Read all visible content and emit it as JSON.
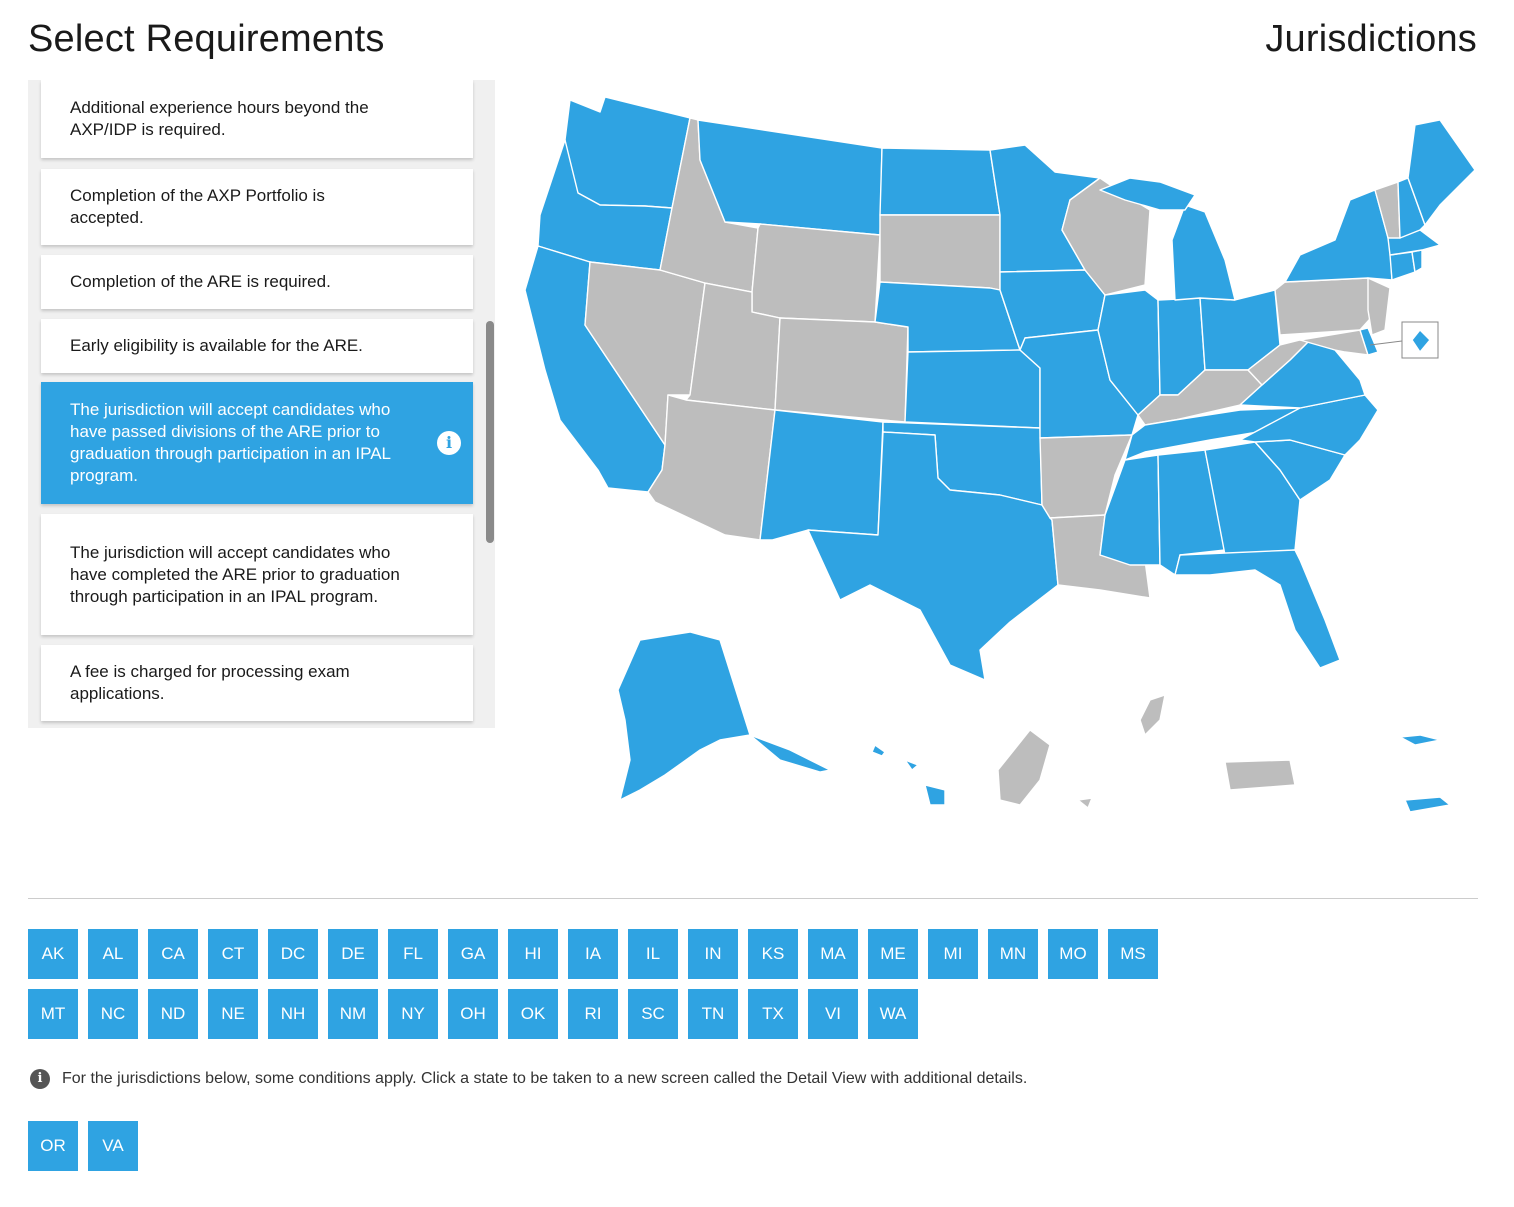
{
  "header": {
    "left_title": "Select Requirements",
    "right_title": "Jurisdictions"
  },
  "requirements": [
    {
      "text": "Additional experience hours beyond the AXP/IDP is required.",
      "selected": false
    },
    {
      "text": "Completion of the AXP Portfolio is accepted.",
      "selected": false
    },
    {
      "text": "Completion of the ARE is required.",
      "selected": false
    },
    {
      "text": "Early eligibility is available for the ARE.",
      "selected": false
    },
    {
      "text": "The jurisdiction will accept candidates who have passed divisions of the ARE prior to graduation through participation in an IPAL program.",
      "selected": true,
      "info_icon": "info-icon"
    },
    {
      "text": "The jurisdiction will accept candidates who have completed the ARE prior to graduation through participation in an IPAL program.",
      "selected": false
    },
    {
      "text": "A fee is charged for processing exam applications.",
      "selected": false
    }
  ],
  "colors": {
    "accent": "#2fa3e2",
    "inactive": "#bdbdbd",
    "panel_bg": "#f0f0f0"
  },
  "map": {
    "highlighted_jurisdictions": [
      "AK",
      "AL",
      "CA",
      "CT",
      "DC",
      "DE",
      "FL",
      "GA",
      "HI",
      "IA",
      "IL",
      "IN",
      "KS",
      "MA",
      "ME",
      "MI",
      "MN",
      "MO",
      "MS",
      "MT",
      "NC",
      "ND",
      "NE",
      "NH",
      "NM",
      "NY",
      "OH",
      "OK",
      "RI",
      "SC",
      "TN",
      "TX",
      "VI",
      "WA",
      "OR",
      "VA"
    ],
    "dc_marker_icon": "dc-diamond-icon"
  },
  "jurisdictions": {
    "row1": [
      "AK",
      "AL",
      "CA",
      "CT",
      "DC",
      "DE",
      "FL",
      "GA",
      "HI",
      "IA",
      "IL",
      "IN",
      "KS",
      "MA",
      "ME",
      "MI",
      "MN",
      "MO",
      "MS"
    ],
    "row2": [
      "MT",
      "NC",
      "ND",
      "NE",
      "NH",
      "NM",
      "NY",
      "OH",
      "OK",
      "RI",
      "SC",
      "TN",
      "TX",
      "VI",
      "WA"
    ]
  },
  "conditions_note": {
    "icon": "info-icon",
    "text": "For the jurisdictions below, some conditions apply. Click a state to be taken to a new screen called the Detail View with additional details."
  },
  "conditional_jurisdictions": [
    "OR",
    "VA"
  ]
}
